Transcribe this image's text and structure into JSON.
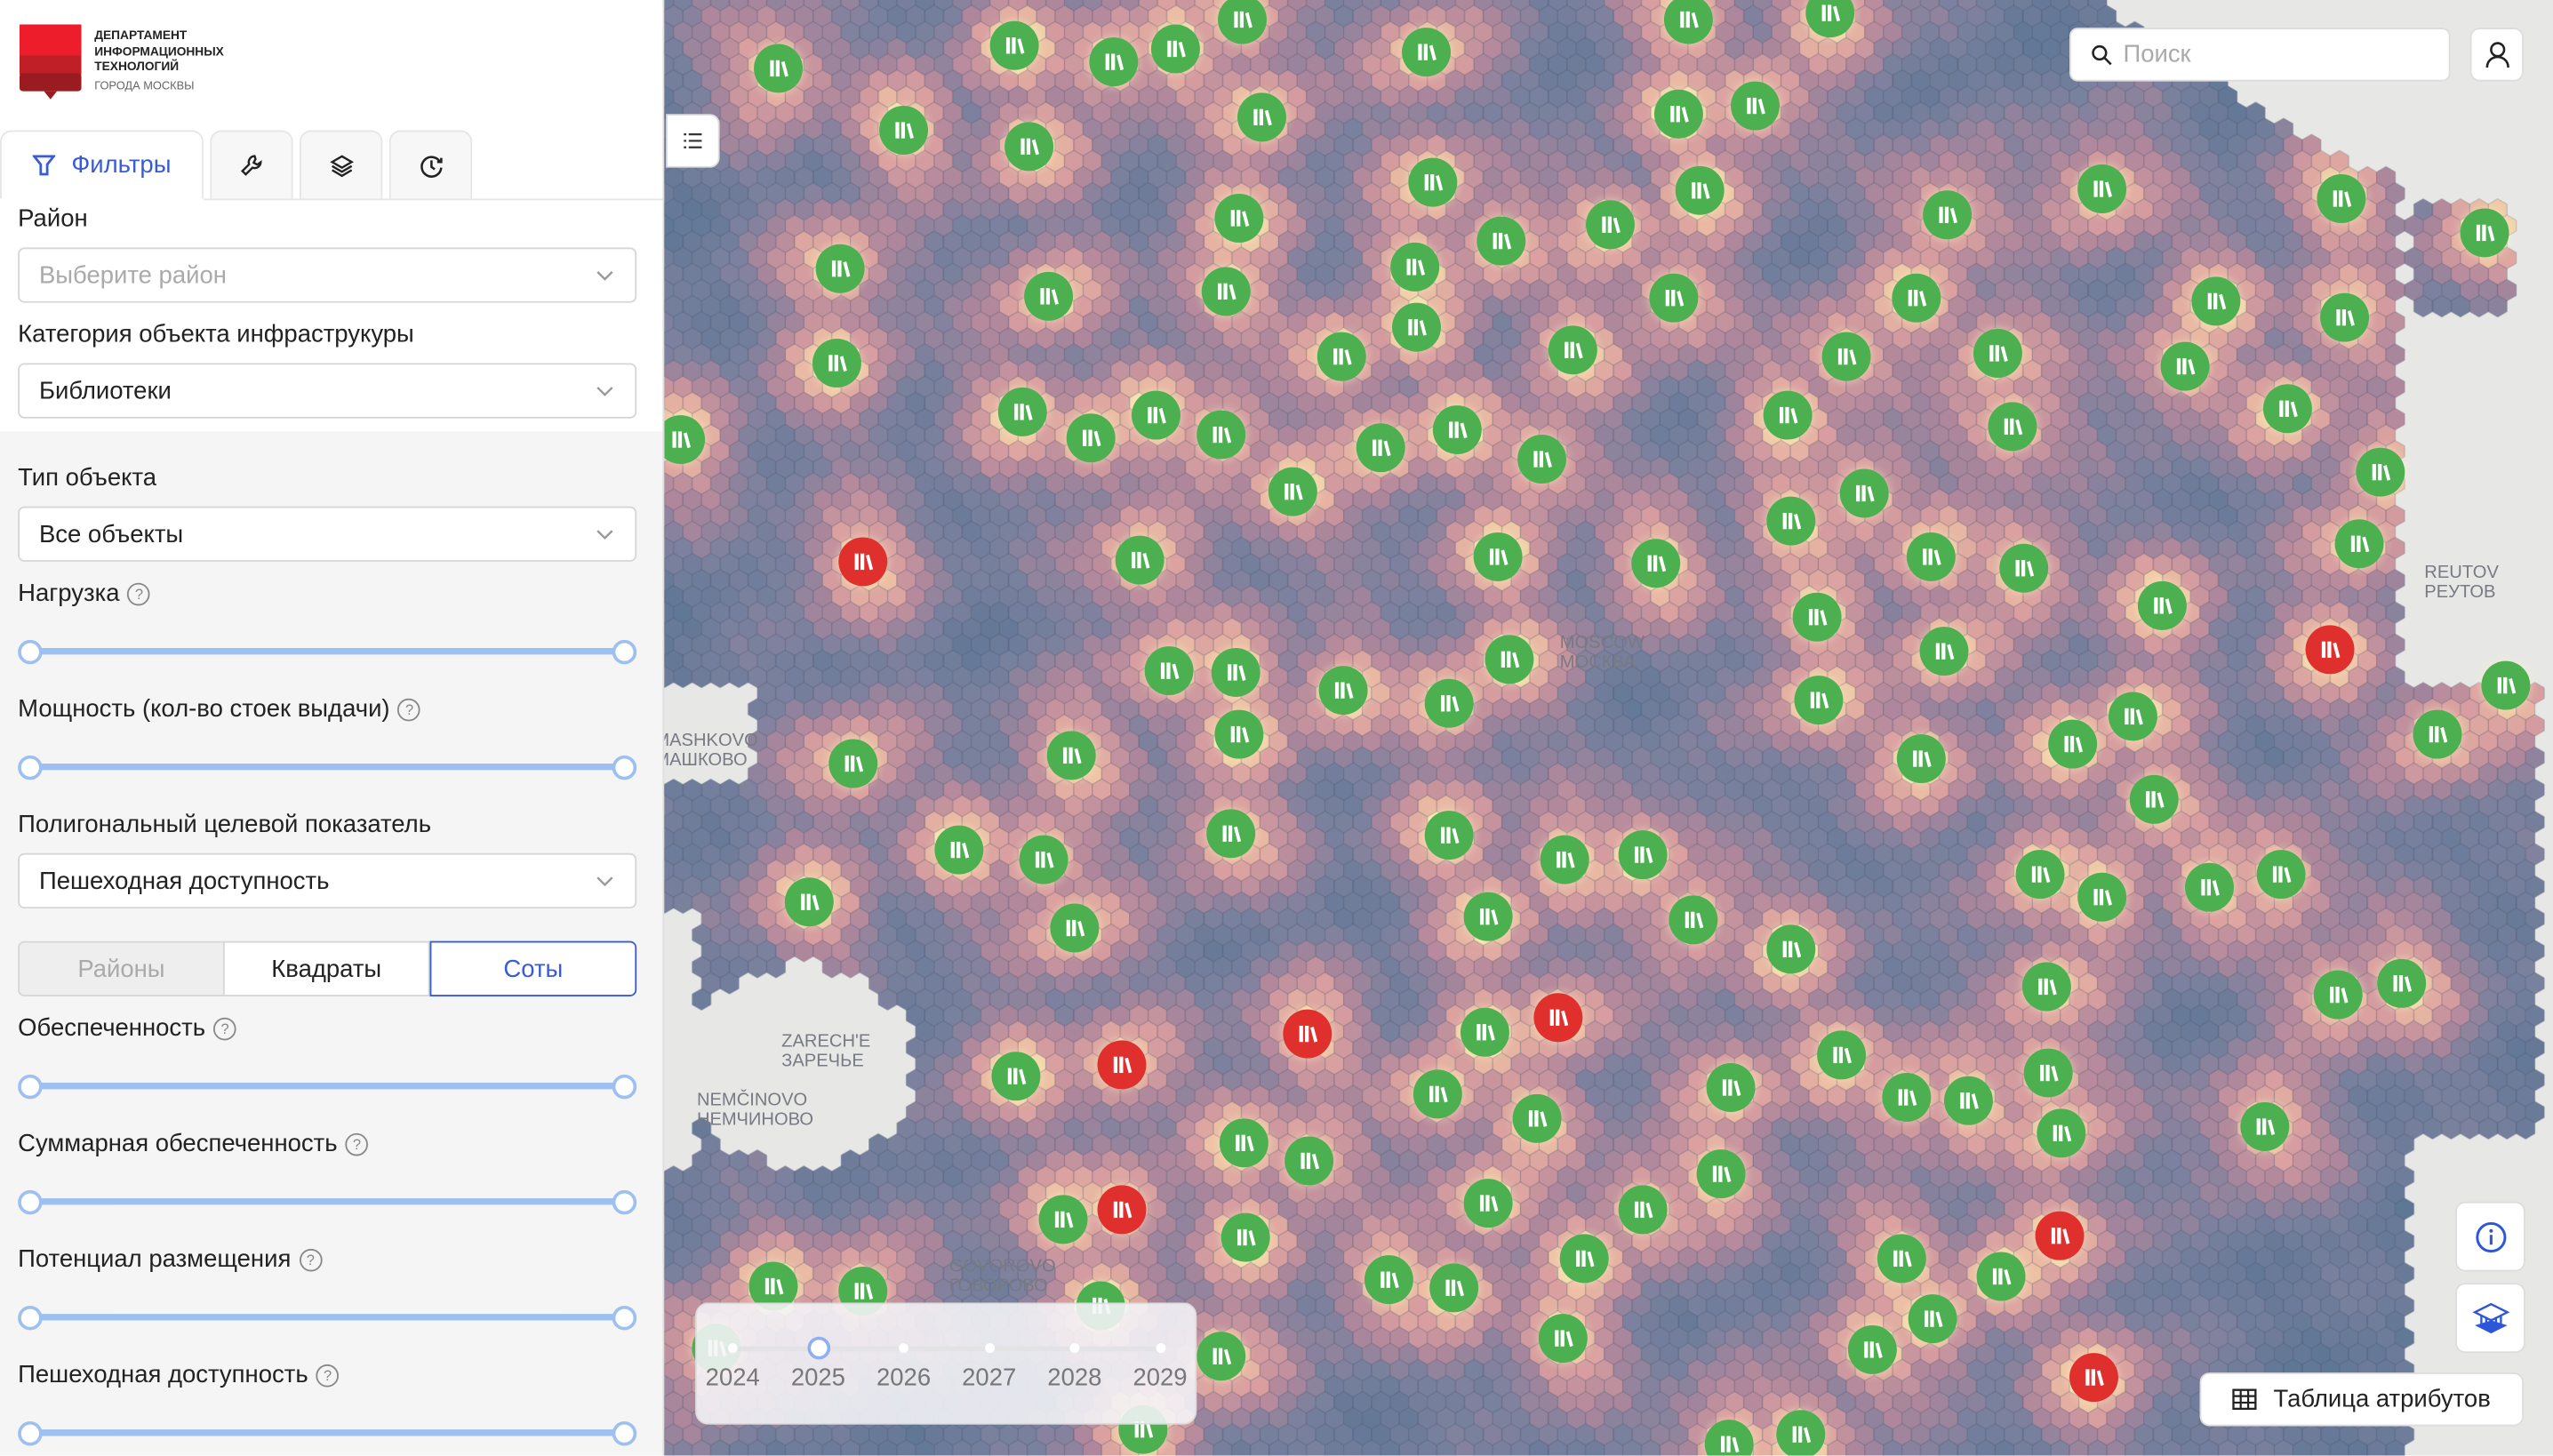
{
  "logo": {
    "line1": "ДЕПАРТАМЕНТ",
    "line2": "ИНФОРМАЦИОННЫХ",
    "line3": "ТЕХНОЛОГИЙ",
    "line4": "ГОРОДА МОСКВЫ"
  },
  "tabs": [
    {
      "label": "Фильтры",
      "icon": "filter-icon",
      "active": true
    },
    {
      "icon": "wrench-icon"
    },
    {
      "icon": "layers-icon"
    },
    {
      "icon": "history-icon"
    }
  ],
  "filters": {
    "district": {
      "label": "Район",
      "placeholder": "Выберите район"
    },
    "category": {
      "label": "Категория объекта инфраструкуры",
      "value": "Библиотеки"
    },
    "object_type": {
      "label": "Тип объекта",
      "value": "Все объекты"
    },
    "load": {
      "label": "Нагрузка",
      "range": [
        0,
        1
      ]
    },
    "capacity": {
      "label": "Мощность (кол-во стоек выдачи)",
      "range": [
        0,
        1
      ]
    },
    "polygon_indicator": {
      "label": "Полигональный целевой показатель",
      "value": "Пешеходная доступность"
    },
    "grid_mode": {
      "options": [
        "Районы",
        "Квадраты",
        "Соты"
      ],
      "selected": "Соты"
    },
    "provision": {
      "label": "Обеспеченность",
      "range": [
        0,
        1
      ]
    },
    "total_provision": {
      "label": "Суммарная обеспеченность",
      "range": [
        0,
        1
      ]
    },
    "placement_potential": {
      "label": "Потенциал размещения",
      "range": [
        0,
        1
      ]
    },
    "walkability": {
      "label": "Пешеходная доступность",
      "range": [
        0,
        1
      ]
    }
  },
  "map": {
    "search_placeholder": "Поиск",
    "labels": {
      "moscow": [
        "MOSCOW",
        "МОСКВА"
      ],
      "reutov": [
        "REUTOV",
        "РЕУТОВ"
      ],
      "mashkovo": [
        "MASHKOVO",
        "МАШКОВО"
      ],
      "zareche": [
        "ZARECH'E",
        "ЗАРЕЧЬЕ"
      ],
      "nemchinovo": [
        "NEMČINOVO",
        "НЕМЧИНОВО"
      ],
      "govorovo": [
        "GOVOROVO",
        "ГОВОРОВО"
      ]
    },
    "attribute_table_label": "Таблица атрибутов",
    "timeline": {
      "years": [
        "2024",
        "2025",
        "2026",
        "2027",
        "2028",
        "2029"
      ],
      "selected": "2025"
    },
    "colors": {
      "marker_ok": "#4caf50",
      "marker_problem": "#e0302e",
      "accent": "#3a5bd9",
      "hex_low": "#4f6a8c",
      "hex_high": "#f6e0a6"
    }
  }
}
